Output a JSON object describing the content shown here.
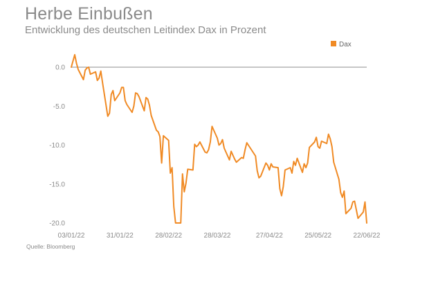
{
  "header": {
    "title": "Herbe Einbußen",
    "subtitle": "Entwicklung des deutschen Leitindex Dax in Prozent"
  },
  "footer": {
    "source": "Quelle: Bloomberg"
  },
  "colors": {
    "series": "#f08a24",
    "zero_line": "#8c8c8c",
    "axis_text": "#8a8a8a"
  },
  "chart_data": {
    "type": "line",
    "title": "Herbe Einbußen",
    "subtitle": "Entwicklung des deutschen Leitindex Dax in Prozent",
    "xlabel": "",
    "ylabel": "",
    "ylim": [
      -20,
      0
    ],
    "yticks": [
      0,
      -5,
      -10,
      -15,
      -20
    ],
    "ytick_labels": [
      "0.0",
      "-5.0",
      "-10.0",
      "-15.0",
      "-20.0"
    ],
    "xlim": [
      "2022-01-03",
      "2022-06-22"
    ],
    "xticks": [
      "2022-01-03",
      "2022-01-31",
      "2022-02-28",
      "2022-03-28",
      "2022-04-27",
      "2022-05-25",
      "2022-06-22"
    ],
    "xtick_labels": [
      "03/01/22",
      "31/01/22",
      "28/02/22",
      "28/03/22",
      "27/04/22",
      "25/05/22",
      "22/06/22"
    ],
    "grid": false,
    "legend": "top-right",
    "series": [
      {
        "name": "Dax",
        "color": "#f08a24",
        "x": [
          "2022-01-03",
          "2022-01-04",
          "2022-01-05",
          "2022-01-06",
          "2022-01-07",
          "2022-01-10",
          "2022-01-11",
          "2022-01-12",
          "2022-01-13",
          "2022-01-14",
          "2022-01-17",
          "2022-01-18",
          "2022-01-19",
          "2022-01-20",
          "2022-01-21",
          "2022-01-24",
          "2022-01-25",
          "2022-01-26",
          "2022-01-27",
          "2022-01-28",
          "2022-01-31",
          "2022-02-01",
          "2022-02-02",
          "2022-02-03",
          "2022-02-04",
          "2022-02-07",
          "2022-02-08",
          "2022-02-09",
          "2022-02-10",
          "2022-02-11",
          "2022-02-14",
          "2022-02-15",
          "2022-02-16",
          "2022-02-17",
          "2022-02-18",
          "2022-02-21",
          "2022-02-22",
          "2022-02-23",
          "2022-02-24",
          "2022-02-25",
          "2022-02-28",
          "2022-03-01",
          "2022-03-02",
          "2022-03-03",
          "2022-03-04",
          "2022-03-07",
          "2022-03-08",
          "2022-03-09",
          "2022-03-10",
          "2022-03-11",
          "2022-03-14",
          "2022-03-15",
          "2022-03-16",
          "2022-03-17",
          "2022-03-18",
          "2022-03-21",
          "2022-03-22",
          "2022-03-23",
          "2022-03-24",
          "2022-03-25",
          "2022-03-28",
          "2022-03-29",
          "2022-03-30",
          "2022-03-31",
          "2022-04-01",
          "2022-04-04",
          "2022-04-05",
          "2022-04-06",
          "2022-04-07",
          "2022-04-08",
          "2022-04-11",
          "2022-04-12",
          "2022-04-13",
          "2022-04-14",
          "2022-04-19",
          "2022-04-20",
          "2022-04-21",
          "2022-04-22",
          "2022-04-25",
          "2022-04-26",
          "2022-04-27",
          "2022-04-28",
          "2022-04-29",
          "2022-05-02",
          "2022-05-03",
          "2022-05-04",
          "2022-05-05",
          "2022-05-06",
          "2022-05-09",
          "2022-05-10",
          "2022-05-11",
          "2022-05-12",
          "2022-05-13",
          "2022-05-16",
          "2022-05-17",
          "2022-05-18",
          "2022-05-19",
          "2022-05-20",
          "2022-05-23",
          "2022-05-24",
          "2022-05-25",
          "2022-05-26",
          "2022-05-27",
          "2022-05-30",
          "2022-05-31",
          "2022-06-01",
          "2022-06-02",
          "2022-06-03",
          "2022-06-06",
          "2022-06-07",
          "2022-06-08",
          "2022-06-09",
          "2022-06-10",
          "2022-06-13",
          "2022-06-14",
          "2022-06-15",
          "2022-06-16",
          "2022-06-17",
          "2022-06-20",
          "2022-06-21",
          "2022-06-22"
        ],
        "values": [
          0.0,
          0.8,
          1.6,
          0.5,
          -0.3,
          -1.6,
          -0.4,
          -0.1,
          0.0,
          -0.9,
          -0.6,
          -1.7,
          -1.4,
          -0.5,
          -2.0,
          -6.3,
          -5.9,
          -3.5,
          -3.0,
          -4.3,
          -3.3,
          -2.6,
          -2.6,
          -4.3,
          -4.8,
          -5.8,
          -5.0,
          -3.3,
          -3.4,
          -3.8,
          -5.6,
          -3.9,
          -4.1,
          -4.9,
          -6.2,
          -8.1,
          -8.3,
          -8.9,
          -12.3,
          -8.8,
          -9.4,
          -13.6,
          -12.9,
          -17.9,
          -20.0,
          -20.0,
          -13.7,
          -16.0,
          -14.9,
          -13.1,
          -13.2,
          -9.9,
          -10.2,
          -10.0,
          -9.6,
          -10.9,
          -11.0,
          -10.6,
          -9.6,
          -7.6,
          -9.1,
          -10.0,
          -9.8,
          -9.3,
          -10.4,
          -11.9,
          -10.8,
          -11.3,
          -11.8,
          -12.2,
          -11.6,
          -11.7,
          -10.6,
          -9.7,
          -11.4,
          -13.3,
          -14.2,
          -14.0,
          -12.3,
          -12.6,
          -13.2,
          -12.4,
          -12.8,
          -12.9,
          -15.6,
          -16.5,
          -15.3,
          -13.2,
          -12.9,
          -13.6,
          -12.1,
          -12.6,
          -11.7,
          -13.5,
          -12.4,
          -12.9,
          -12.3,
          -10.3,
          -9.6,
          -9.0,
          -10.2,
          -10.4,
          -9.5,
          -9.8,
          -8.6,
          -9.2,
          -10.2,
          -12.2,
          -14.4,
          -16.1,
          -16.7,
          -15.9,
          -18.8,
          -18.1,
          -17.3,
          -17.2,
          -18.3,
          -19.4,
          -18.6,
          -17.3,
          -20.0
        ]
      }
    ]
  }
}
